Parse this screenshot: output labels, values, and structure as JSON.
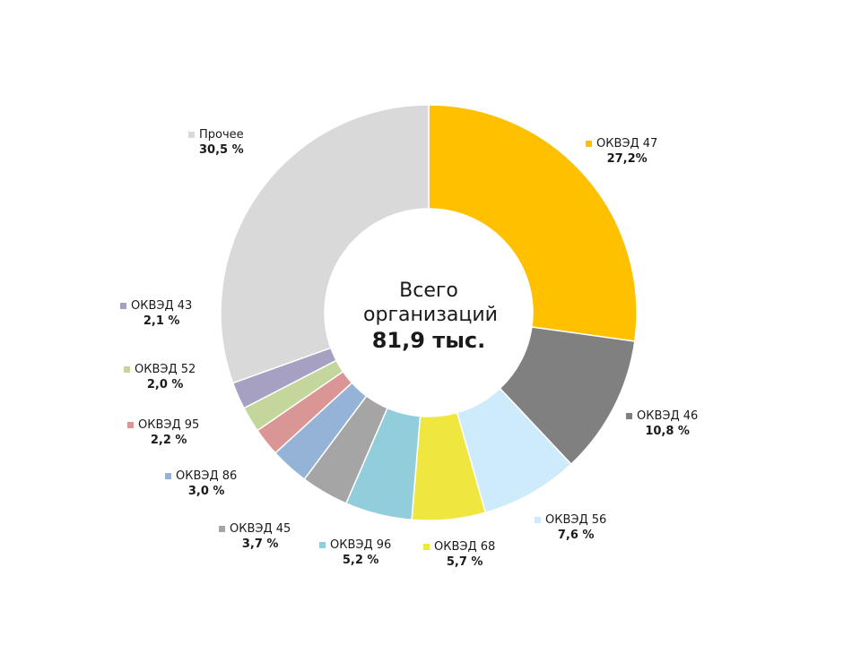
{
  "chart_data": {
    "type": "pie",
    "variant": "donut",
    "center": {
      "line1": "Всего",
      "line2": "организаций",
      "total": "81,9 тыс."
    },
    "slices": [
      {
        "name": "ОКВЭД 47",
        "value": 27.2,
        "label": "27,2%",
        "color": "#FFC000"
      },
      {
        "name": "ОКВЭД 46",
        "value": 10.8,
        "label": "10,8 %",
        "color": "#808080"
      },
      {
        "name": "ОКВЭД 56",
        "value": 7.6,
        "label": "7,6 %",
        "color": "#CDEBFB"
      },
      {
        "name": "ОКВЭД 68",
        "value": 5.7,
        "label": "5,7 %",
        "color": "#F0E640"
      },
      {
        "name": "ОКВЭД 96",
        "value": 5.2,
        "label": "5,2 %",
        "color": "#92CDDC"
      },
      {
        "name": "ОКВЭД 45",
        "value": 3.7,
        "label": "3,7 %",
        "color": "#A5A5A5"
      },
      {
        "name": "ОКВЭД 86",
        "value": 3.0,
        "label": "3,0 %",
        "color": "#95B3D7"
      },
      {
        "name": "ОКВЭД 95",
        "value": 2.2,
        "label": "2,2 %",
        "color": "#D99694"
      },
      {
        "name": "ОКВЭД 52",
        "value": 2.0,
        "label": "2,0 %",
        "color": "#C3D69B"
      },
      {
        "name": "ОКВЭД 43",
        "value": 2.1,
        "label": "2,1 %",
        "color": "#A6A0C3"
      },
      {
        "name": "Прочее",
        "value": 30.5,
        "label": "30,5 %",
        "color": "#D9D9D9"
      }
    ]
  }
}
